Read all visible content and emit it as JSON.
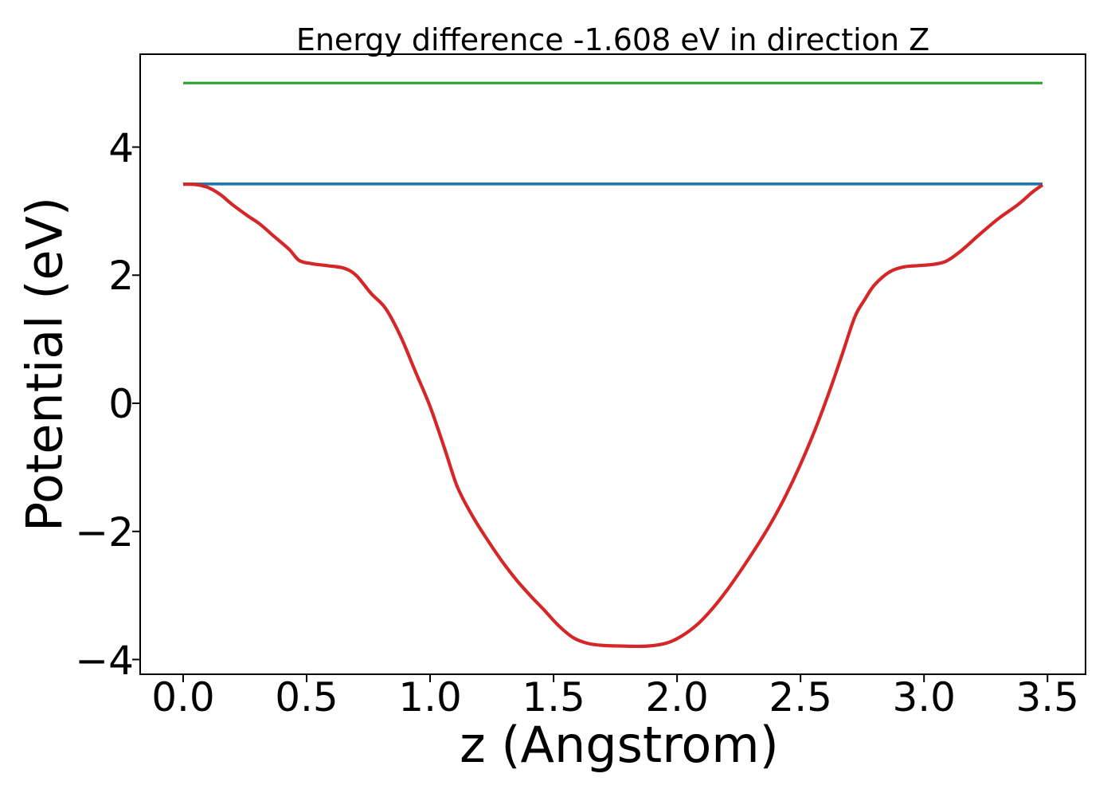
{
  "chart_data": {
    "type": "line",
    "title": "Energy difference -1.608 eV in direction Z",
    "xlabel": "z (Angstrom)",
    "ylabel": "Potential (eV)",
    "xlim": [
      -0.174,
      3.654
    ],
    "ylim": [
      -4.23,
      5.45
    ],
    "xticks": [
      0.0,
      0.5,
      1.0,
      1.5,
      2.0,
      2.5,
      3.0,
      3.5
    ],
    "xtick_labels": [
      "0.0",
      "0.5",
      "1.0",
      "1.5",
      "2.0",
      "2.5",
      "3.0",
      "3.5"
    ],
    "yticks": [
      -4,
      -2,
      0,
      2,
      4
    ],
    "ytick_labels": [
      "−4",
      "−2",
      "0",
      "2",
      "4"
    ],
    "grid": false,
    "legend": false,
    "axis_color": "#000000",
    "series": [
      {
        "id": "green-hline",
        "color": "#2ca02c",
        "line_width": 3.2,
        "points": [
          [
            0.0,
            5.0
          ],
          [
            3.48,
            5.0
          ]
        ]
      },
      {
        "id": "blue-hline",
        "color": "#1f77b4",
        "line_width": 3.6,
        "points": [
          [
            0.0,
            3.425
          ],
          [
            3.48,
            3.425
          ]
        ]
      },
      {
        "id": "red-potential-curve",
        "color": "#d62728",
        "line_width": 4.2,
        "points": [
          [
            0.0,
            3.42
          ],
          [
            0.05,
            3.415
          ],
          [
            0.1,
            3.37
          ],
          [
            0.15,
            3.26
          ],
          [
            0.2,
            3.1
          ],
          [
            0.26,
            2.93
          ],
          [
            0.31,
            2.8
          ],
          [
            0.37,
            2.6
          ],
          [
            0.43,
            2.4
          ],
          [
            0.47,
            2.23
          ],
          [
            0.52,
            2.18
          ],
          [
            0.58,
            2.15
          ],
          [
            0.65,
            2.11
          ],
          [
            0.7,
            2.0
          ],
          [
            0.76,
            1.72
          ],
          [
            0.82,
            1.48
          ],
          [
            0.88,
            1.05
          ],
          [
            0.94,
            0.5
          ],
          [
            1.0,
            -0.05
          ],
          [
            1.06,
            -0.72
          ],
          [
            1.11,
            -1.3
          ],
          [
            1.17,
            -1.75
          ],
          [
            1.23,
            -2.12
          ],
          [
            1.29,
            -2.46
          ],
          [
            1.35,
            -2.76
          ],
          [
            1.41,
            -3.02
          ],
          [
            1.46,
            -3.22
          ],
          [
            1.52,
            -3.47
          ],
          [
            1.58,
            -3.66
          ],
          [
            1.64,
            -3.75
          ],
          [
            1.7,
            -3.78
          ],
          [
            1.78,
            -3.79
          ],
          [
            1.88,
            -3.79
          ],
          [
            1.96,
            -3.74
          ],
          [
            2.02,
            -3.63
          ],
          [
            2.08,
            -3.46
          ],
          [
            2.14,
            -3.22
          ],
          [
            2.2,
            -2.93
          ],
          [
            2.26,
            -2.6
          ],
          [
            2.32,
            -2.25
          ],
          [
            2.38,
            -1.87
          ],
          [
            2.44,
            -1.44
          ],
          [
            2.5,
            -0.95
          ],
          [
            2.56,
            -0.4
          ],
          [
            2.62,
            0.22
          ],
          [
            2.67,
            0.78
          ],
          [
            2.72,
            1.35
          ],
          [
            2.76,
            1.62
          ],
          [
            2.8,
            1.85
          ],
          [
            2.86,
            2.05
          ],
          [
            2.92,
            2.13
          ],
          [
            2.98,
            2.15
          ],
          [
            3.04,
            2.17
          ],
          [
            3.09,
            2.22
          ],
          [
            3.15,
            2.38
          ],
          [
            3.22,
            2.62
          ],
          [
            3.3,
            2.88
          ],
          [
            3.38,
            3.1
          ],
          [
            3.44,
            3.3
          ],
          [
            3.48,
            3.41
          ]
        ]
      }
    ]
  }
}
